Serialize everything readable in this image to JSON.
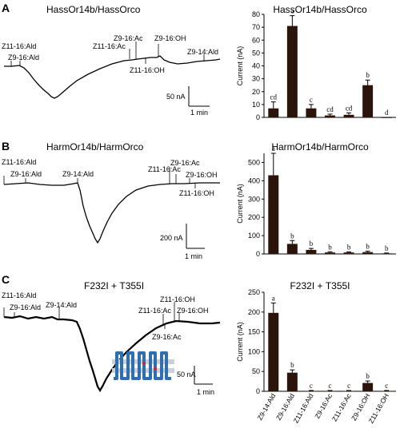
{
  "panels": [
    {
      "letter": "A",
      "trace_title": "HassOr14b/HassOrco",
      "stimulus_labels": [
        "Z11-16:Ald",
        "Z9-16:Ald",
        "Z11-16:Ac",
        "Z9-16:Ac",
        "Z11-16:OH",
        "Z9-16:OH",
        "Z9-14:Ald"
      ],
      "scale_current": "50 nA",
      "scale_time": "1 min",
      "chart_data": {
        "type": "bar",
        "title": "HassOr14b/HassOrco",
        "ylabel": "Current (nA)",
        "ylim": [
          0,
          80
        ],
        "yticks": [
          0,
          10,
          20,
          30,
          40,
          50,
          60,
          70,
          80
        ],
        "values": [
          7,
          71,
          7,
          1.5,
          2,
          25,
          0
        ],
        "errors": [
          5,
          8,
          3,
          1,
          1.5,
          4,
          0
        ],
        "significance": [
          "cd",
          "a",
          "c",
          "cd",
          "cd",
          "b",
          "d"
        ],
        "color": "#2b140a"
      }
    },
    {
      "letter": "B",
      "trace_title": "HarmOr14b/HarmOrco",
      "stimulus_labels": [
        "Z11-16:Ald",
        "Z9-16:Ald",
        "Z9-14:Ald",
        "Z9-16:Ac",
        "Z11-16:Ac",
        "Z9-16:OH",
        "Z11-16:OH"
      ],
      "scale_current": "200 nA",
      "scale_time": "1 min",
      "chart_data": {
        "type": "bar",
        "title": "HarmOr14b/HarmOrco",
        "ylabel": "Current (nA)",
        "ylim": [
          0,
          550
        ],
        "yticks": [
          0,
          100,
          200,
          300,
          400,
          500
        ],
        "values": [
          430,
          55,
          22,
          8,
          8,
          10,
          3
        ],
        "errors": [
          120,
          18,
          8,
          4,
          3,
          5,
          2
        ],
        "significance": [
          "a",
          "b",
          "b",
          "b",
          "b",
          "b",
          "b"
        ],
        "color": "#2b140a"
      }
    },
    {
      "letter": "C",
      "trace_title": "F232I + T355I",
      "stimulus_labels": [
        "Z11-16:Ald",
        "Z9-16:Ald",
        "Z9-14:Ald",
        "Z11-16:OH",
        "Z11-16:Ac",
        "Z9-16:OH",
        "Z9-16:Ac"
      ],
      "scale_current": "50 nA",
      "scale_time": "1 min",
      "chart_data": {
        "type": "bar",
        "title": "F232I + T355I",
        "ylabel": "Current (nA)",
        "ylim": [
          0,
          250
        ],
        "yticks": [
          0,
          50,
          100,
          150,
          200,
          250
        ],
        "categories": [
          "Z9-14:Ald",
          "Z9-16:Ald",
          "Z11-16:Ald",
          "Z9-16:Ac",
          "Z11-16:Ac",
          "Z9-16:OH",
          "Z11-16:OH"
        ],
        "values": [
          198,
          47,
          1,
          1,
          1,
          21,
          1
        ],
        "errors": [
          25,
          7,
          1,
          1,
          1,
          5,
          1
        ],
        "significance": [
          "a",
          "b",
          "c",
          "c",
          "c",
          "b",
          "c"
        ],
        "color": "#2b140a"
      }
    }
  ]
}
